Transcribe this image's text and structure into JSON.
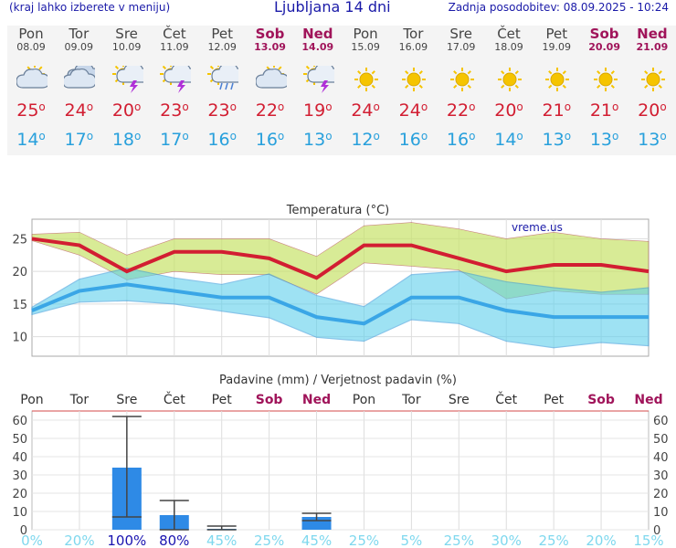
{
  "header": {
    "menu_hint": "(kraj lahko izberete v meniju)",
    "title": "Ljubljana 14 dni",
    "updated": "Zadnja posodobitev: 08.09.2025 - 10:24"
  },
  "forecast": [
    {
      "day": "Pon",
      "date": "08.09",
      "icon": "sun-cloud-icon",
      "max": "25",
      "min": "14",
      "weekend": false
    },
    {
      "day": "Tor",
      "date": "09.09",
      "icon": "cloudy-icon",
      "max": "24",
      "min": "17",
      "weekend": false
    },
    {
      "day": "Sre",
      "date": "10.09",
      "icon": "sun-thunderstorm-icon",
      "max": "20",
      "min": "18",
      "weekend": false
    },
    {
      "day": "Čet",
      "date": "11.09",
      "icon": "sun-thunderstorm-icon",
      "max": "23",
      "min": "17",
      "weekend": false
    },
    {
      "day": "Pet",
      "date": "12.09",
      "icon": "sun-rain-icon",
      "max": "23",
      "min": "16",
      "weekend": false
    },
    {
      "day": "Sob",
      "date": "13.09",
      "icon": "sun-cloud-icon",
      "max": "22",
      "min": "16",
      "weekend": true
    },
    {
      "day": "Ned",
      "date": "14.09",
      "icon": "sun-thunderstorm-icon",
      "max": "19",
      "min": "13",
      "weekend": true
    },
    {
      "day": "Pon",
      "date": "15.09",
      "icon": "sun-icon",
      "max": "24",
      "min": "12",
      "weekend": false
    },
    {
      "day": "Tor",
      "date": "16.09",
      "icon": "sun-icon",
      "max": "24",
      "min": "16",
      "weekend": false
    },
    {
      "day": "Sre",
      "date": "17.09",
      "icon": "sun-icon",
      "max": "22",
      "min": "16",
      "weekend": false
    },
    {
      "day": "Čet",
      "date": "18.09",
      "icon": "sun-icon",
      "max": "20",
      "min": "14",
      "weekend": false
    },
    {
      "day": "Pet",
      "date": "19.09",
      "icon": "sun-icon",
      "max": "21",
      "min": "13",
      "weekend": false
    },
    {
      "day": "Sob",
      "date": "20.09",
      "icon": "sun-icon",
      "max": "21",
      "min": "13",
      "weekend": true
    },
    {
      "day": "Ned",
      "date": "21.09",
      "icon": "sun-icon",
      "max": "20",
      "min": "13",
      "weekend": true
    }
  ],
  "colors": {
    "max": "#d21e32",
    "min": "#28a0dc",
    "weekend": "#a0145a",
    "title": "#1a1aa8",
    "bar": "#2e8ae6"
  },
  "chart_data": [
    {
      "type": "line",
      "title": "Temperatura (°C)",
      "watermark": "vreme.us",
      "ylim": [
        7,
        28
      ],
      "yticks": [
        "10",
        "15",
        "20",
        "25"
      ],
      "grid": true,
      "series": [
        {
          "role": "max",
          "values": [
            25,
            24,
            20,
            23,
            23,
            22,
            19,
            24,
            24,
            22,
            20,
            21,
            21,
            20
          ]
        },
        {
          "role": "max-range-upper",
          "values": [
            25.7,
            26,
            22.5,
            25,
            25,
            25,
            22.3,
            27,
            27.5,
            26.5,
            25,
            26,
            25,
            24.6
          ]
        },
        {
          "role": "max-range-lower",
          "values": [
            24.7,
            22.5,
            18.7,
            20,
            19.5,
            19.5,
            16.5,
            21.3,
            20.8,
            20.2,
            15.8,
            17,
            16.5,
            16.5
          ]
        },
        {
          "role": "min",
          "values": [
            14,
            17,
            18,
            17,
            16,
            16,
            13,
            12,
            16,
            16,
            14,
            13,
            13,
            13
          ]
        },
        {
          "role": "min-range-upper",
          "values": [
            14.5,
            18.8,
            20.5,
            19,
            18,
            19.6,
            16.3,
            14.6,
            19.5,
            20,
            18.4,
            17.5,
            16.8,
            17.5
          ]
        },
        {
          "role": "min-range-lower",
          "values": [
            13.4,
            15.3,
            15.5,
            15,
            13.9,
            12.9,
            9.9,
            9.3,
            12.6,
            12,
            9.3,
            8.3,
            9.1,
            8.6
          ]
        }
      ]
    },
    {
      "type": "bar",
      "title": "Padavine (mm) / Verjetnost padavin (%)",
      "categories": [
        "Pon",
        "Tor",
        "Sre",
        "Čet",
        "Pet",
        "Sob",
        "Ned",
        "Pon",
        "Tor",
        "Sre",
        "Čet",
        "Pet",
        "Sob",
        "Ned"
      ],
      "weekend": [
        false,
        false,
        false,
        false,
        false,
        true,
        true,
        false,
        false,
        false,
        false,
        false,
        true,
        true
      ],
      "ylim": [
        0,
        65
      ],
      "yticks": [
        "0",
        "10",
        "20",
        "30",
        "40",
        "50",
        "60"
      ],
      "values": [
        0,
        0,
        34,
        8,
        0.5,
        0,
        7,
        0,
        0,
        0,
        0,
        0,
        0,
        0
      ],
      "error_high": [
        null,
        null,
        62,
        16,
        2,
        null,
        9,
        null,
        null,
        null,
        null,
        null,
        null,
        null
      ],
      "error_low": [
        null,
        null,
        7,
        0,
        0,
        null,
        5,
        null,
        null,
        null,
        null,
        null,
        null,
        null
      ],
      "probability": [
        "0%",
        "20%",
        "100%",
        "80%",
        "45%",
        "25%",
        "45%",
        "25%",
        "5%",
        "25%",
        "30%",
        "25%",
        "20%",
        "15%"
      ],
      "probability_values": [
        0,
        20,
        100,
        80,
        45,
        25,
        45,
        25,
        5,
        25,
        30,
        25,
        20,
        15
      ]
    }
  ]
}
